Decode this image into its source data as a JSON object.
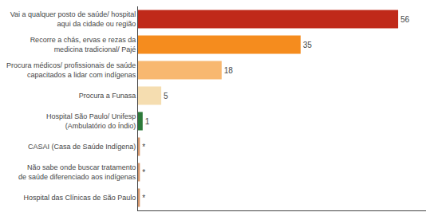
{
  "chart_data": {
    "type": "bar",
    "orientation": "horizontal",
    "categories": [
      "Hospital das Clínicas de São Paulo",
      "Não sabe onde buscar tratamento\nde saúde diferenciado aos indígenas",
      "CASAI (Casa de Saúde Indígena)",
      "Hospital São Paulo/ Unifesp\n(Ambulatório do Índio)",
      "Procura a Funasa",
      "Procura médicos/ profissionais de saúde\ncapacitados a lidar com indígenas",
      "Recorre a chás, ervas e rezas da\nmedicina tradicional/ Pajé",
      "Vai a qualquer posto de saúde/ hospital\naqui da cidade ou região"
    ],
    "values": [
      0.4,
      0.4,
      0.4,
      1,
      5,
      18,
      35,
      56
    ],
    "value_labels": [
      "*",
      "*",
      "*",
      "1",
      "5",
      "18",
      "35",
      "56"
    ],
    "colors": [
      "#d4956a",
      "#d4956a",
      "#d4956a",
      "#2d7a3a",
      "#f5ddb0",
      "#f8b870",
      "#f58c1e",
      "#c0291a"
    ],
    "xlim": [
      0,
      62
    ],
    "data_labels": true,
    "tick_labels": "y",
    "grid": false
  }
}
